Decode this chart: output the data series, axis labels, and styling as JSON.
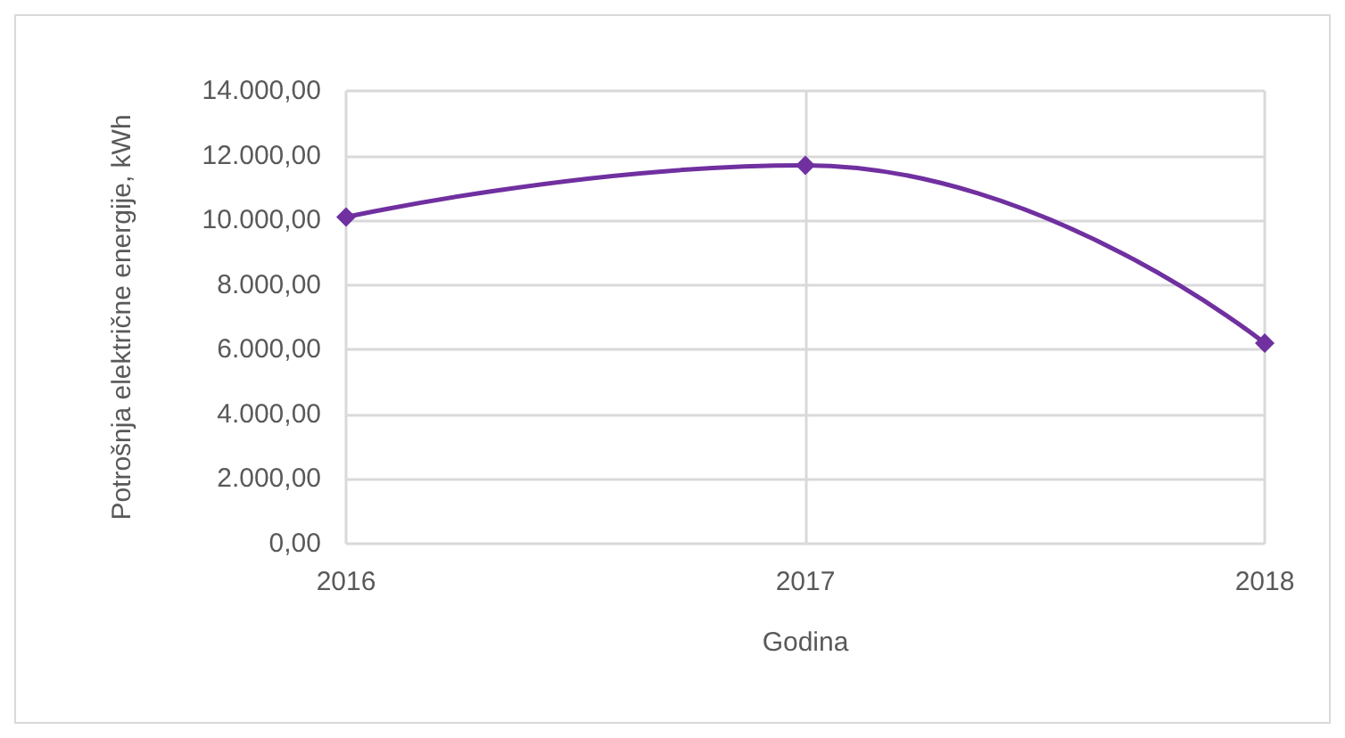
{
  "chart_data": {
    "type": "line",
    "xlabel": "Godina",
    "ylabel": "Potrošnja električne energije, kWh",
    "x": [
      2016,
      2017,
      2018
    ],
    "series": [
      {
        "color": "#7030a0",
        "values": [
          10100,
          11700,
          6200
        ]
      }
    ],
    "xlim": [
      2016,
      2018
    ],
    "xticks": [
      2016,
      2017,
      2018
    ],
    "ylim": [
      0,
      14000
    ],
    "yticks": [
      {
        "value": 0,
        "label": "0,00"
      },
      {
        "value": 2000,
        "label": "2.000,00"
      },
      {
        "value": 4000,
        "label": "4.000,00"
      },
      {
        "value": 6000,
        "label": "6.000,00"
      },
      {
        "value": 8000,
        "label": "8.000,00"
      },
      {
        "value": 10000,
        "label": "10.000,00"
      },
      {
        "value": 12000,
        "label": "12.000,00"
      },
      {
        "value": 14000,
        "label": "14.000,00"
      }
    ],
    "grid": true,
    "marker": "diamond",
    "line_style": "solid"
  }
}
